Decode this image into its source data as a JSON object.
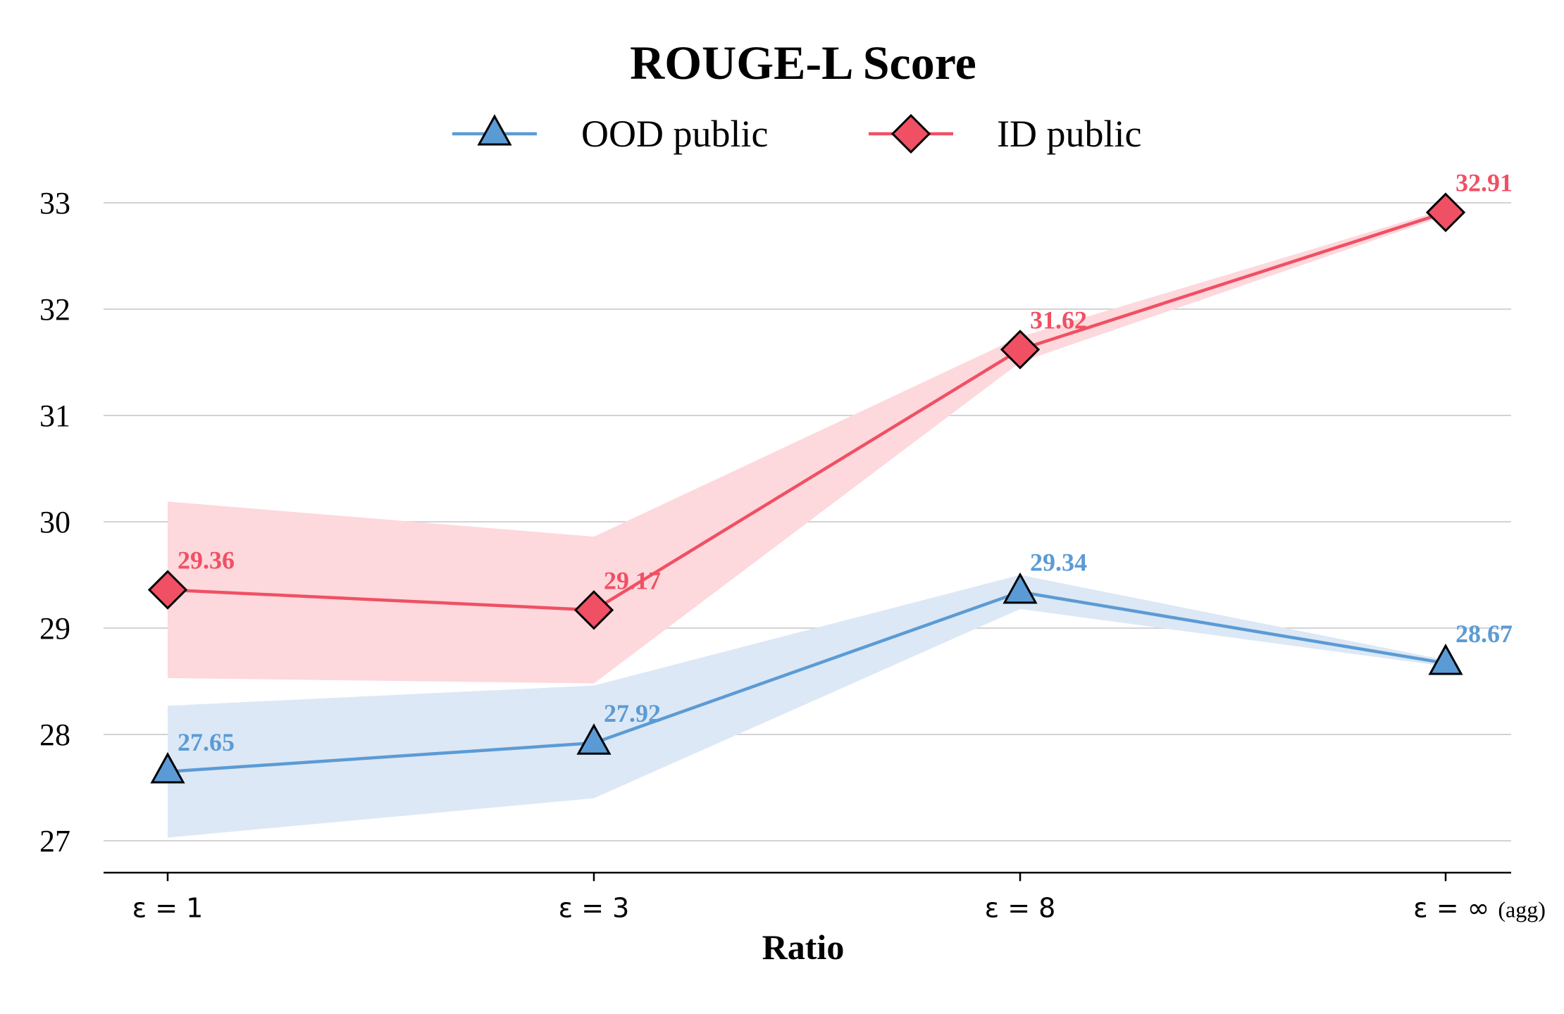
{
  "chart_data": {
    "type": "line",
    "title": "ROUGE-L Score",
    "xlabel": "Ratio",
    "ylabel": "",
    "categories": [
      {
        "main": "ε = 1",
        "suffix": ""
      },
      {
        "main": "ε = 3",
        "suffix": ""
      },
      {
        "main": "ε = 8",
        "suffix": ""
      },
      {
        "main": "ε = ∞",
        "suffix": "(agg)"
      }
    ],
    "yticks": [
      "27",
      "28",
      "29",
      "30",
      "31",
      "32",
      "33"
    ],
    "ylim": [
      26.7,
      33.4
    ],
    "grid": "horizontal",
    "legend_position": "top-center",
    "series": [
      {
        "name": "OOD public",
        "color": "#5b9bd5",
        "band_color": "#dce8f5",
        "marker": "triangle",
        "values": [
          27.65,
          27.92,
          29.34,
          28.67
        ],
        "labels": [
          "27.65",
          "27.92",
          "29.34",
          "28.67"
        ],
        "lower": [
          27.03,
          27.4,
          29.18,
          28.64
        ],
        "upper": [
          28.27,
          28.46,
          29.5,
          28.7
        ]
      },
      {
        "name": "ID public",
        "color": "#f05064",
        "band_color": "#fdd8dc",
        "marker": "diamond",
        "values": [
          29.36,
          29.17,
          31.62,
          32.91
        ],
        "labels": [
          "29.36",
          "29.17",
          "31.62",
          "32.91"
        ],
        "lower": [
          28.53,
          28.48,
          31.5,
          32.88
        ],
        "upper": [
          30.19,
          29.86,
          31.74,
          32.94
        ]
      }
    ]
  }
}
